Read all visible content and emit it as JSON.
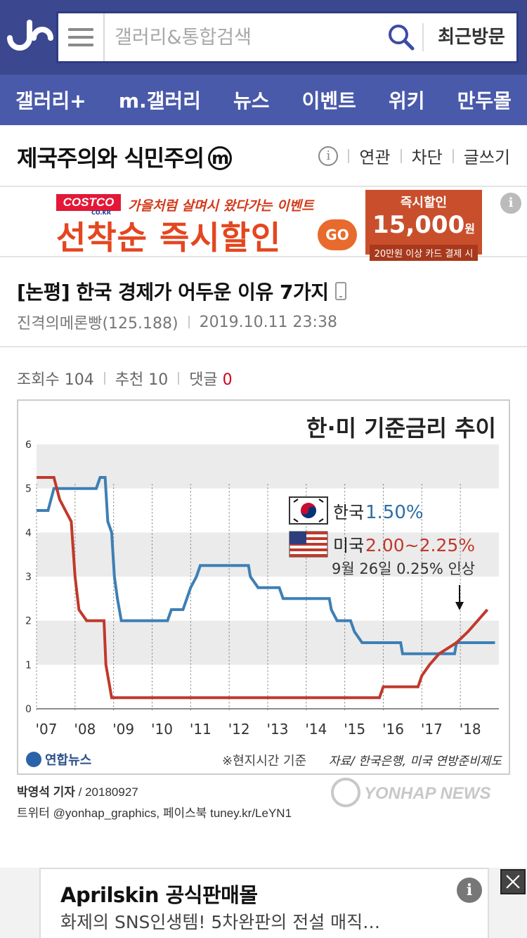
{
  "header": {
    "search_placeholder": "갤러리&통합검색",
    "recent_label": "최근방문"
  },
  "nav": [
    {
      "label": "갤러리+"
    },
    {
      "label": "m.갤러리"
    },
    {
      "label": "뉴스"
    },
    {
      "label": "이벤트"
    },
    {
      "label": "위키"
    },
    {
      "label": "만두몰"
    }
  ],
  "gallery": {
    "title": "제국주의와 식민주의",
    "badge": "m",
    "info_glyph": "i",
    "actions": [
      "연관",
      "차단",
      "글쓰기"
    ]
  },
  "ad_banner": {
    "brand": "COSTCO",
    "brand_sub": "CO.KR",
    "tagline": "가을처럼 살며시 왔다가는 이벤트",
    "headline": "선착순 즉시할인",
    "go": "GO",
    "coupon_top": "즉시할인",
    "coupon_amount": "15,000",
    "coupon_unit": "원",
    "coupon_note": "20만원 이상 카드 결제 시",
    "info_glyph": "i"
  },
  "post": {
    "title": "[논평] 한국 경제가 어두운 이유 7가지",
    "author": "진격의메론빵(125.188)",
    "datetime": "2019.10.11 23:38",
    "views_label": "조회수 104",
    "recommend_label": "추천 10",
    "comments_label": "댓글",
    "comments_count": "0"
  },
  "chart_data": {
    "type": "line",
    "title": "한·미 기준금리 추이",
    "xlabel": "",
    "ylabel": "",
    "ylim": [
      0,
      6
    ],
    "yticks": [
      "0",
      "1",
      "2",
      "3",
      "4",
      "5",
      "6"
    ],
    "xticks": [
      "'07",
      "'08",
      "'09",
      "'10",
      "'11",
      "'12",
      "'13",
      "'14",
      "'15",
      "'16",
      "'17",
      "'18"
    ],
    "x_range": [
      2007.0,
      2019.0
    ],
    "series": [
      {
        "name": "한국",
        "legend_value": "1.50%",
        "color": "#3d7fb5",
        "points": [
          [
            2007.0,
            4.5
          ],
          [
            2007.3,
            4.5
          ],
          [
            2007.45,
            5.0
          ],
          [
            2008.55,
            5.0
          ],
          [
            2008.65,
            5.25
          ],
          [
            2008.78,
            5.25
          ],
          [
            2008.85,
            4.25
          ],
          [
            2008.95,
            4.0
          ],
          [
            2009.02,
            3.0
          ],
          [
            2009.1,
            2.5
          ],
          [
            2009.2,
            2.0
          ],
          [
            2010.4,
            2.0
          ],
          [
            2010.5,
            2.25
          ],
          [
            2010.8,
            2.25
          ],
          [
            2010.9,
            2.5
          ],
          [
            2011.0,
            2.75
          ],
          [
            2011.15,
            3.0
          ],
          [
            2011.25,
            3.25
          ],
          [
            2012.5,
            3.25
          ],
          [
            2012.55,
            3.0
          ],
          [
            2012.75,
            2.75
          ],
          [
            2013.3,
            2.75
          ],
          [
            2013.4,
            2.5
          ],
          [
            2014.6,
            2.5
          ],
          [
            2014.65,
            2.25
          ],
          [
            2014.8,
            2.0
          ],
          [
            2015.15,
            2.0
          ],
          [
            2015.25,
            1.75
          ],
          [
            2015.45,
            1.5
          ],
          [
            2016.45,
            1.5
          ],
          [
            2016.5,
            1.25
          ],
          [
            2017.85,
            1.25
          ],
          [
            2017.9,
            1.5
          ],
          [
            2018.9,
            1.5
          ]
        ]
      },
      {
        "name": "미국",
        "legend_value": "2.00~2.25%",
        "color": "#c0392b",
        "points": [
          [
            2007.0,
            5.25
          ],
          [
            2007.45,
            5.25
          ],
          [
            2007.6,
            4.75
          ],
          [
            2007.75,
            4.5
          ],
          [
            2007.9,
            4.25
          ],
          [
            2008.0,
            3.0
          ],
          [
            2008.1,
            2.25
          ],
          [
            2008.3,
            2.0
          ],
          [
            2008.75,
            2.0
          ],
          [
            2008.8,
            1.0
          ],
          [
            2008.95,
            0.25
          ],
          [
            2015.9,
            0.25
          ],
          [
            2016.0,
            0.5
          ],
          [
            2016.9,
            0.5
          ],
          [
            2017.0,
            0.75
          ],
          [
            2017.2,
            1.0
          ],
          [
            2017.45,
            1.25
          ],
          [
            2017.9,
            1.5
          ],
          [
            2018.2,
            1.75
          ],
          [
            2018.45,
            2.0
          ],
          [
            2018.7,
            2.25
          ]
        ]
      }
    ],
    "annotation": "9월 26일 0.25% 인상",
    "footnote": "※현지시간 기준",
    "source": "자료/ 한국은행, 미국 연방준비제도",
    "publisher": "연합뉴스",
    "watermark": "YONHAP NEWS"
  },
  "credit": {
    "reporter": "박영석 기자",
    "date": " / 20180927",
    "line2": "트위터 @yonhap_graphics, 페이스북 tuney.kr/LeYN1"
  },
  "bottom_ad": {
    "title": "Aprilskin 공식판매몰",
    "subtitle": "화제의 SNS인생템! 5차완판의 전설 매직…",
    "info_glyph": "i"
  }
}
